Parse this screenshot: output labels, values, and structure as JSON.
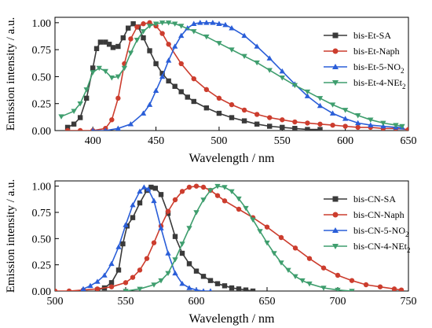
{
  "chart_data": [
    {
      "type": "line",
      "xlabel": "Wavelength / nm",
      "ylabel": "Emission intensity / a.u.",
      "xlim": [
        370,
        650
      ],
      "ylim": [
        0,
        1.05
      ],
      "xticks": [
        400,
        450,
        500,
        550,
        600,
        650
      ],
      "yticks": [
        "0.00",
        "0.25",
        "0.50",
        "0.75",
        "1.00"
      ],
      "legend_position": "top-right",
      "series": [
        {
          "name": "bis-Et-SA",
          "label": {
            "main": "bis-Et-SA"
          },
          "color": "#3a3a3a",
          "marker": "square",
          "x": [
            380,
            385,
            390,
            395,
            400,
            403,
            406,
            410,
            413,
            416,
            420,
            424,
            428,
            432,
            436,
            440,
            445,
            450,
            455,
            460,
            465,
            470,
            475,
            480,
            490,
            500,
            510,
            520,
            530,
            540,
            550,
            560,
            570,
            580
          ],
          "y": [
            0.03,
            0.06,
            0.12,
            0.3,
            0.58,
            0.76,
            0.82,
            0.82,
            0.8,
            0.77,
            0.78,
            0.86,
            0.95,
            0.99,
            0.96,
            0.86,
            0.74,
            0.62,
            0.53,
            0.46,
            0.41,
            0.36,
            0.31,
            0.27,
            0.21,
            0.16,
            0.12,
            0.09,
            0.06,
            0.04,
            0.03,
            0.02,
            0.01,
            0.01
          ]
        },
        {
          "name": "bis-Et-Naph",
          "label": {
            "main": "bis-Et-Naph"
          },
          "color": "#cc3d2e",
          "marker": "circle",
          "x": [
            380,
            390,
            400,
            410,
            415,
            420,
            425,
            430,
            435,
            440,
            445,
            450,
            455,
            460,
            470,
            480,
            490,
            500,
            510,
            520,
            530,
            540,
            550,
            560,
            570,
            580,
            590,
            600,
            610,
            620,
            630,
            640,
            650
          ],
          "y": [
            0.0,
            0.0,
            0.0,
            0.02,
            0.1,
            0.3,
            0.62,
            0.85,
            0.96,
            0.99,
            1.0,
            0.97,
            0.9,
            0.8,
            0.62,
            0.48,
            0.38,
            0.3,
            0.24,
            0.19,
            0.15,
            0.12,
            0.1,
            0.08,
            0.07,
            0.06,
            0.05,
            0.04,
            0.03,
            0.03,
            0.02,
            0.02,
            0.01
          ]
        },
        {
          "name": "bis-Et-5-NO2",
          "label": {
            "main": "bis-Et-5-NO",
            "sub": "2"
          },
          "color": "#2a5ed8",
          "marker": "triangle-up",
          "x": [
            400,
            410,
            420,
            430,
            440,
            445,
            450,
            455,
            460,
            465,
            470,
            475,
            480,
            485,
            490,
            495,
            500,
            505,
            510,
            520,
            530,
            540,
            550,
            560,
            570,
            580,
            590,
            600,
            610,
            620,
            630,
            640,
            645
          ],
          "y": [
            0.0,
            0.0,
            0.02,
            0.06,
            0.16,
            0.24,
            0.37,
            0.5,
            0.65,
            0.78,
            0.88,
            0.95,
            0.99,
            1.0,
            1.0,
            1.0,
            0.99,
            0.98,
            0.95,
            0.88,
            0.78,
            0.67,
            0.55,
            0.43,
            0.32,
            0.23,
            0.16,
            0.11,
            0.07,
            0.05,
            0.04,
            0.03,
            0.03
          ]
        },
        {
          "name": "bis-Et-4-NEt2",
          "label": {
            "main": "bis-Et-4-NEt",
            "sub": "2"
          },
          "color": "#3f9e6e",
          "marker": "triangle-down",
          "x": [
            375,
            385,
            390,
            395,
            400,
            405,
            410,
            415,
            420,
            425,
            430,
            435,
            440,
            445,
            450,
            455,
            460,
            465,
            470,
            480,
            490,
            500,
            510,
            520,
            530,
            540,
            550,
            560,
            570,
            580,
            590,
            600,
            610,
            620,
            630,
            640,
            645
          ],
          "y": [
            0.13,
            0.18,
            0.25,
            0.38,
            0.54,
            0.58,
            0.55,
            0.49,
            0.5,
            0.58,
            0.72,
            0.84,
            0.92,
            0.97,
            0.99,
            1.0,
            1.0,
            0.99,
            0.97,
            0.92,
            0.87,
            0.81,
            0.75,
            0.69,
            0.63,
            0.56,
            0.49,
            0.42,
            0.36,
            0.3,
            0.24,
            0.19,
            0.14,
            0.1,
            0.07,
            0.05,
            0.04
          ]
        }
      ]
    },
    {
      "type": "line",
      "xlabel": "Wavelength / nm",
      "ylabel": "Emission intensity / a.u.",
      "xlim": [
        500,
        750
      ],
      "ylim": [
        0,
        1.05
      ],
      "xticks": [
        500,
        550,
        600,
        650,
        700,
        750
      ],
      "yticks": [
        "0.00",
        "0.25",
        "0.50",
        "0.75",
        "1.00"
      ],
      "legend_position": "top-right",
      "series": [
        {
          "name": "bis-CN-SA",
          "label": {
            "main": "bis-CN-SA"
          },
          "color": "#3a3a3a",
          "marker": "square",
          "x": [
            530,
            535,
            540,
            545,
            548,
            551,
            555,
            560,
            565,
            568,
            571,
            575,
            580,
            585,
            590,
            595,
            600,
            605,
            610,
            615,
            620,
            625,
            630,
            635,
            640
          ],
          "y": [
            0.01,
            0.03,
            0.08,
            0.2,
            0.45,
            0.62,
            0.7,
            0.84,
            0.96,
            0.99,
            0.98,
            0.92,
            0.74,
            0.52,
            0.36,
            0.26,
            0.19,
            0.14,
            0.1,
            0.07,
            0.05,
            0.03,
            0.02,
            0.01,
            0.0
          ]
        },
        {
          "name": "bis-CN-Naph",
          "label": {
            "main": "bis-CN-Naph"
          },
          "color": "#cc3d2e",
          "marker": "circle",
          "x": [
            500,
            510,
            520,
            530,
            540,
            550,
            555,
            560,
            565,
            570,
            575,
            580,
            585,
            590,
            595,
            600,
            605,
            610,
            615,
            620,
            630,
            640,
            650,
            660,
            670,
            680,
            690,
            700,
            710,
            720,
            730,
            740,
            745
          ],
          "y": [
            0.0,
            0.0,
            0.01,
            0.02,
            0.04,
            0.08,
            0.13,
            0.2,
            0.31,
            0.46,
            0.62,
            0.76,
            0.87,
            0.95,
            0.99,
            1.0,
            0.99,
            0.96,
            0.91,
            0.86,
            0.78,
            0.7,
            0.61,
            0.51,
            0.41,
            0.31,
            0.22,
            0.15,
            0.1,
            0.06,
            0.04,
            0.02,
            0.01
          ]
        },
        {
          "name": "bis-CN-5-NO2",
          "label": {
            "main": "bis-CN-5-NO",
            "sub": "2"
          },
          "color": "#2a5ed8",
          "marker": "triangle-up",
          "x": [
            520,
            525,
            530,
            535,
            540,
            545,
            550,
            555,
            560,
            563,
            566,
            570,
            575,
            580,
            585,
            590,
            595,
            600,
            605,
            610
          ],
          "y": [
            0.02,
            0.05,
            0.09,
            0.15,
            0.26,
            0.42,
            0.63,
            0.82,
            0.95,
            0.99,
            0.97,
            0.86,
            0.6,
            0.36,
            0.17,
            0.07,
            0.03,
            0.01,
            0.0,
            0.0
          ]
        },
        {
          "name": "bis-CN-4-NEt2",
          "label": {
            "main": "bis-CN-4-NEt",
            "sub": "2"
          },
          "color": "#3f9e6e",
          "marker": "triangle-down",
          "x": [
            550,
            560,
            570,
            575,
            580,
            585,
            590,
            595,
            600,
            605,
            610,
            615,
            620,
            625,
            630,
            635,
            640,
            645,
            650,
            655,
            660,
            665,
            670,
            675,
            680,
            690,
            700,
            710
          ],
          "y": [
            0.0,
            0.02,
            0.06,
            0.1,
            0.17,
            0.3,
            0.45,
            0.6,
            0.75,
            0.87,
            0.96,
            1.0,
            0.99,
            0.95,
            0.88,
            0.79,
            0.68,
            0.57,
            0.46,
            0.36,
            0.27,
            0.2,
            0.14,
            0.1,
            0.07,
            0.03,
            0.01,
            0.0
          ]
        }
      ]
    }
  ]
}
